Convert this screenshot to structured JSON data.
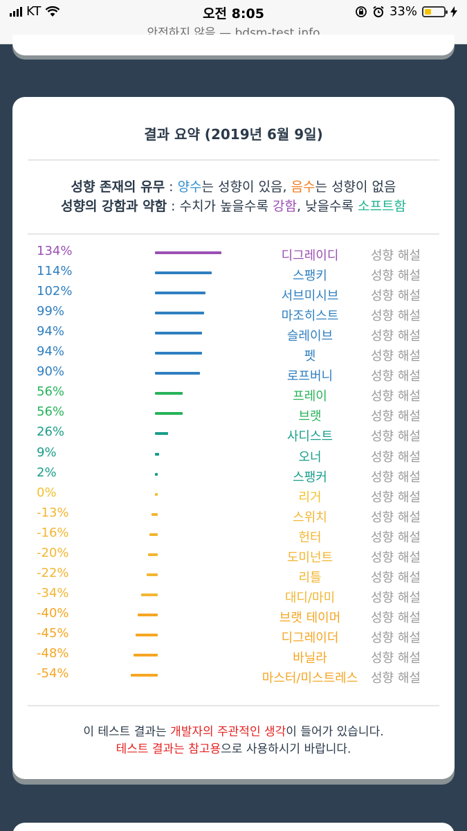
{
  "status_bar": {
    "carrier": "KT",
    "time": "오전 8:05",
    "battery": "33%",
    "battery_level": 0.33
  },
  "browser": {
    "url": "안전하지 않음 — bdsm-test.info"
  },
  "card": {
    "title": "결과 요약 (2019년 6월 9일)",
    "legend1": {
      "label": "성향 존재의 유무",
      "sep": " : ",
      "pos": "양수",
      "t1": "는 성향이 있음, ",
      "neg": "음수",
      "t2": "는 성향이 없음"
    },
    "legend2": {
      "label": "성향의 강함과 약함",
      "sep": " : 수치가 높을수록 ",
      "strong": "강함",
      "t1": ", 낮을수록 ",
      "soft": "소프트함"
    },
    "colors": {
      "purple": "#9b4fb3",
      "blue": "#2f7fc0",
      "green": "#27b35a",
      "teal": "#1a9e8a",
      "yellow": "#f2b632",
      "orange": "#f5a623"
    },
    "rows": [
      {
        "pct": "134%",
        "value": 134,
        "name": "디그레이디",
        "desc": "성향 해설",
        "color": "#9b4fb3"
      },
      {
        "pct": "114%",
        "value": 114,
        "name": "스팽키",
        "desc": "성향 해설",
        "color": "#2f7fc0"
      },
      {
        "pct": "102%",
        "value": 102,
        "name": "서브미시브",
        "desc": "성향 해설",
        "color": "#2f7fc0"
      },
      {
        "pct": "99%",
        "value": 99,
        "name": "마조히스트",
        "desc": "성향 해설",
        "color": "#2f7fc0"
      },
      {
        "pct": "94%",
        "value": 94,
        "name": "슬레이브",
        "desc": "성향 해설",
        "color": "#2f7fc0"
      },
      {
        "pct": "94%",
        "value": 94,
        "name": "펫",
        "desc": "성향 해설",
        "color": "#2f7fc0"
      },
      {
        "pct": "90%",
        "value": 90,
        "name": "로프버니",
        "desc": "성향 해설",
        "color": "#2f7fc0"
      },
      {
        "pct": "56%",
        "value": 56,
        "name": "프레이",
        "desc": "성향 해설",
        "color": "#27b35a"
      },
      {
        "pct": "56%",
        "value": 56,
        "name": "브랫",
        "desc": "성향 해설",
        "color": "#27b35a"
      },
      {
        "pct": "26%",
        "value": 26,
        "name": "사디스트",
        "desc": "성향 해설",
        "color": "#1a9e8a"
      },
      {
        "pct": "9%",
        "value": 9,
        "name": "오너",
        "desc": "성향 해설",
        "color": "#1a9e8a"
      },
      {
        "pct": "2%",
        "value": 2,
        "name": "스팽커",
        "desc": "성향 해설",
        "color": "#1a9e8a"
      },
      {
        "pct": "0%",
        "value": 0,
        "name": "리거",
        "desc": "성향 해설",
        "color": "#f2c12e"
      },
      {
        "pct": "-13%",
        "value": -13,
        "name": "스위치",
        "desc": "성향 해설",
        "color": "#f2b632"
      },
      {
        "pct": "-16%",
        "value": -16,
        "name": "헌터",
        "desc": "성향 해설",
        "color": "#f2b632"
      },
      {
        "pct": "-20%",
        "value": -20,
        "name": "도미넌트",
        "desc": "성향 해설",
        "color": "#f2b632"
      },
      {
        "pct": "-22%",
        "value": -22,
        "name": "리틀",
        "desc": "성향 해설",
        "color": "#f2b632"
      },
      {
        "pct": "-34%",
        "value": -34,
        "name": "대디/마미",
        "desc": "성향 해설",
        "color": "#f2b632"
      },
      {
        "pct": "-40%",
        "value": -40,
        "name": "브랫 테이머",
        "desc": "성향 해설",
        "color": "#f5a623"
      },
      {
        "pct": "-45%",
        "value": -45,
        "name": "디그레이더",
        "desc": "성향 해설",
        "color": "#f5a623"
      },
      {
        "pct": "-48%",
        "value": -48,
        "name": "바닐라",
        "desc": "성향 해설",
        "color": "#f5a623"
      },
      {
        "pct": "-54%",
        "value": -54,
        "name": "마스터/미스트레스",
        "desc": "성향 해설",
        "color": "#f5a623"
      }
    ],
    "note1": {
      "t1": "이 테스트 결과는 ",
      "red": "개발자의 주관적인 생각",
      "t2": "이 들어가 있습니다."
    },
    "note2": {
      "red": "테스트 결과는 참고용",
      "t1": "으로 사용하시기 바랍니다."
    }
  }
}
